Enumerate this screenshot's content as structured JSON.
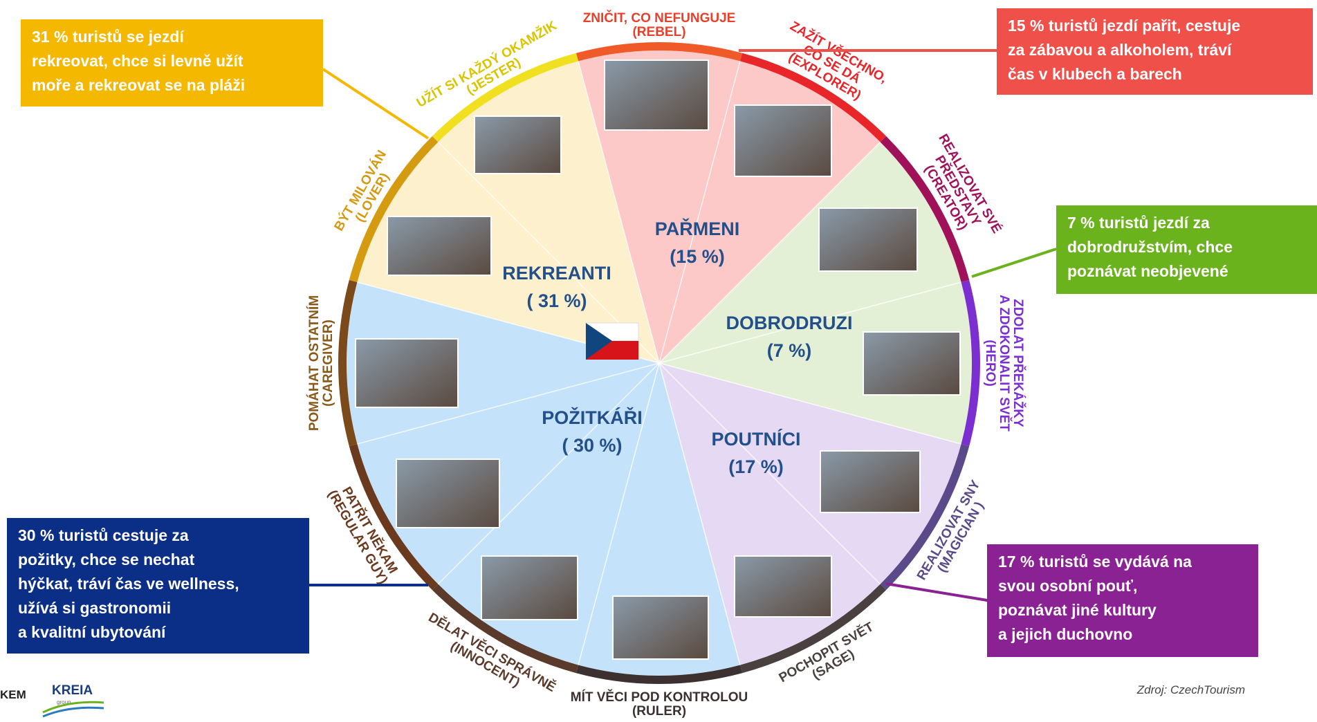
{
  "segments": [
    {
      "label": "PAŘMENI",
      "share": "(15 %)"
    },
    {
      "label": "DOBRODRUZI",
      "share": "(7 %)"
    },
    {
      "label": "POUTNÍCI",
      "share": "(17 %)"
    },
    {
      "label": "POŽITKÁŘI",
      "share": "( 30 %)"
    },
    {
      "label": "REKREANTI",
      "share": "( 31 %)"
    }
  ],
  "archetypes": [
    {
      "lines": [
        "ZNIČIT, CO NEFUNGUJE",
        "(REBEL)"
      ]
    },
    {
      "lines": [
        "ZAŽÍT VŠECHNO,",
        "CO SE DÁ",
        "(EXPLORER)"
      ]
    },
    {
      "lines": [
        "REALIZOVAT SVÉ",
        "PŘEDSTAVY",
        "(CREATOR)"
      ]
    },
    {
      "lines": [
        "ZDOLAT PŘEKÁŽKY",
        "A ZDOKONALIT SVĚT",
        "(HERO)"
      ]
    },
    {
      "lines": [
        "REALIZOVAT SNY",
        "(MAGICIAN )"
      ]
    },
    {
      "lines": [
        "POCHOPIT SVĚT",
        "(SAGE)"
      ]
    },
    {
      "lines": [
        "MÍT VĚCI POD KONTROLOU",
        "(RULER)"
      ]
    },
    {
      "lines": [
        "DĚLAT VĚCI SPRÁVNĚ",
        "(INNOCENT)"
      ]
    },
    {
      "lines": [
        "PATŘIT NĚKAM",
        "(REGULAR GUY)"
      ]
    },
    {
      "lines": [
        "POMÁHAT OSTATNÍM",
        "(CAREGIVER)"
      ]
    },
    {
      "lines": [
        "BÝT MILOVÁN",
        "(LOVER)"
      ]
    },
    {
      "lines": [
        "UŽÍT SI KAŽDÝ OKAMŽIK",
        "(JESTER)"
      ]
    }
  ],
  "callouts": [
    {
      "lines": [
        "31 % turistů se jezdí",
        "rekreovat, chce si levně užít",
        "moře a rekreovat se na pláži"
      ]
    },
    {
      "lines": [
        "15 % turistů jezdí pařit, cestuje",
        "za zábavou a alkoholem, tráví",
        "čas v klubech a barech"
      ]
    },
    {
      "lines": [
        "7 % turistů jezdí za",
        "dobrodružstvím, chce",
        "poznávat neobjevené"
      ]
    },
    {
      "lines": [
        "30 % turistů cestuje za",
        "požitky, chce se nechat",
        "hýčkat, tráví čas ve wellness,",
        "užívá si gastronomii",
        "a kvalitní ubytování"
      ]
    },
    {
      "lines": [
        "17 % turistů se vydává na",
        "svou osobní pouť,",
        "poznávat jiné kultury",
        "a jejich duchovno"
      ]
    }
  ],
  "source": "Zdroj: CzechTourism",
  "logos": [
    "KEM",
    "KREIA",
    "group"
  ]
}
